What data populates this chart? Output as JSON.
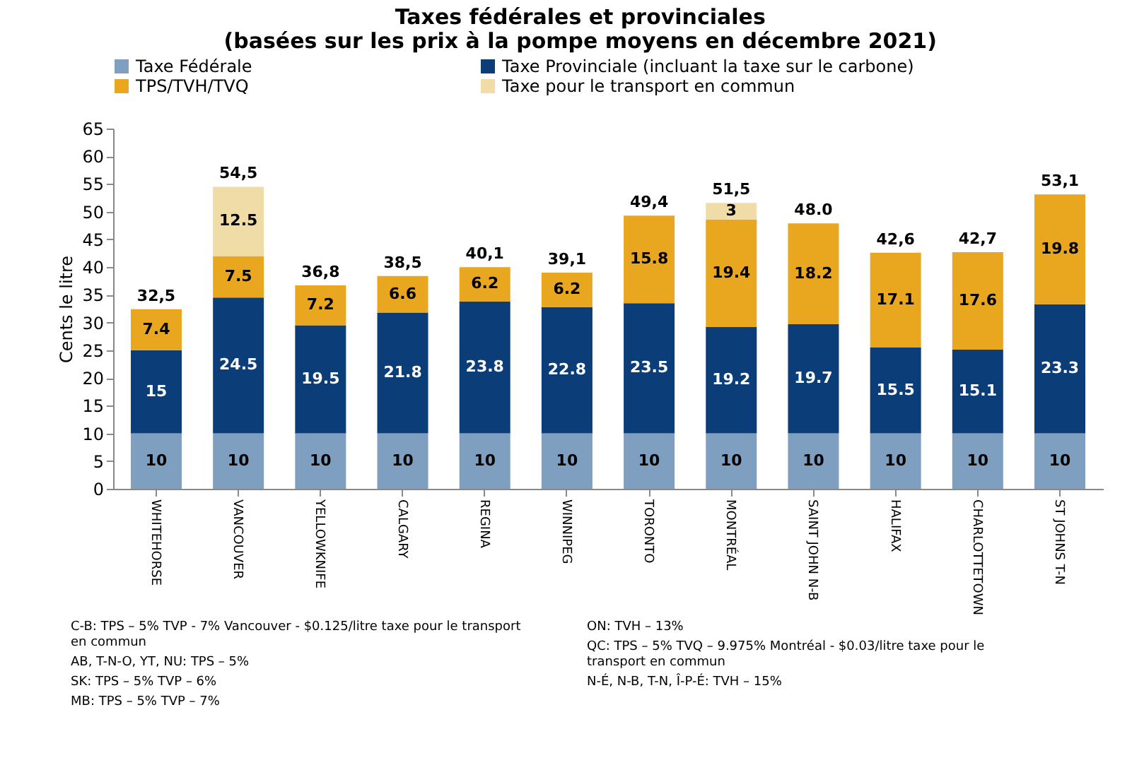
{
  "chart_data": {
    "type": "bar",
    "title": "Taxes fédérales et provinciales",
    "subtitle": "(basées sur les prix à la pompe moyens en décembre 2021)",
    "ylabel": "Cents le litre",
    "categories": [
      "WHITEHORSE",
      "VANCOUVER",
      "YELLOWKNIFE",
      "CALGARY",
      "REGINA",
      "WINNIPEG",
      "TORONTO",
      "MONTRÉAL",
      "SAINT JOHN N-B",
      "HALIFAX",
      "CHARLOTTETOWN",
      "ST JOHNS T-N"
    ],
    "stacked": true,
    "series": [
      {
        "name": "Taxe Fédérale",
        "color": "#7f9fc0",
        "values": [
          10,
          10,
          10,
          10,
          10,
          10,
          10,
          10,
          10,
          10,
          10,
          10
        ]
      },
      {
        "name": "Taxe Provinciale (incluant la taxe sur le carbone)",
        "color": "#0b3d78",
        "values": [
          15,
          24.5,
          19.5,
          21.8,
          23.8,
          22.8,
          23.5,
          19.2,
          19.7,
          15.5,
          15.1,
          23.3
        ]
      },
      {
        "name": "TPS/TVH/TVQ",
        "color": "#e9a71f",
        "values": [
          7.4,
          7.5,
          7.2,
          6.6,
          6.2,
          6.2,
          15.8,
          19.4,
          18.2,
          17.1,
          17.6,
          19.8
        ]
      },
      {
        "name": "Taxe pour le transport en commun",
        "color": "#efdca6",
        "values": [
          null,
          12.5,
          null,
          null,
          null,
          null,
          null,
          3,
          null,
          null,
          null,
          null
        ]
      }
    ],
    "totals": [
      "32,5",
      "54,5",
      "36,8",
      "38,5",
      "40,1",
      "39,1",
      "49,4",
      "51,5",
      "48.0",
      "42,6",
      "42,7",
      "53,1"
    ],
    "data_labels": true,
    "ylim": [
      0,
      65
    ],
    "yticks": [
      0,
      5,
      10,
      15,
      20,
      25,
      30,
      35,
      40,
      45,
      50,
      55,
      60,
      65
    ],
    "grid": false,
    "legend": "top",
    "annotations": [
      "C-B:  TPS – 5% TVP - 7%  Vancouver - $0.125/litre taxe pour le transport en commun",
      "AB, T-N-O, YT, NU:   TPS – 5%",
      "SK:  TPS – 5% TVP – 6%",
      "MB:  TPS – 5% TVP – 7%",
      "ON:   TVH – 13%",
      "QC:   TPS – 5%  TVQ – 9.975% Montréal - $0.03/litre taxe pour le transport en commun",
      "N-É, N-B, T-N,  Î-P-É:  TVH – 15%"
    ]
  }
}
